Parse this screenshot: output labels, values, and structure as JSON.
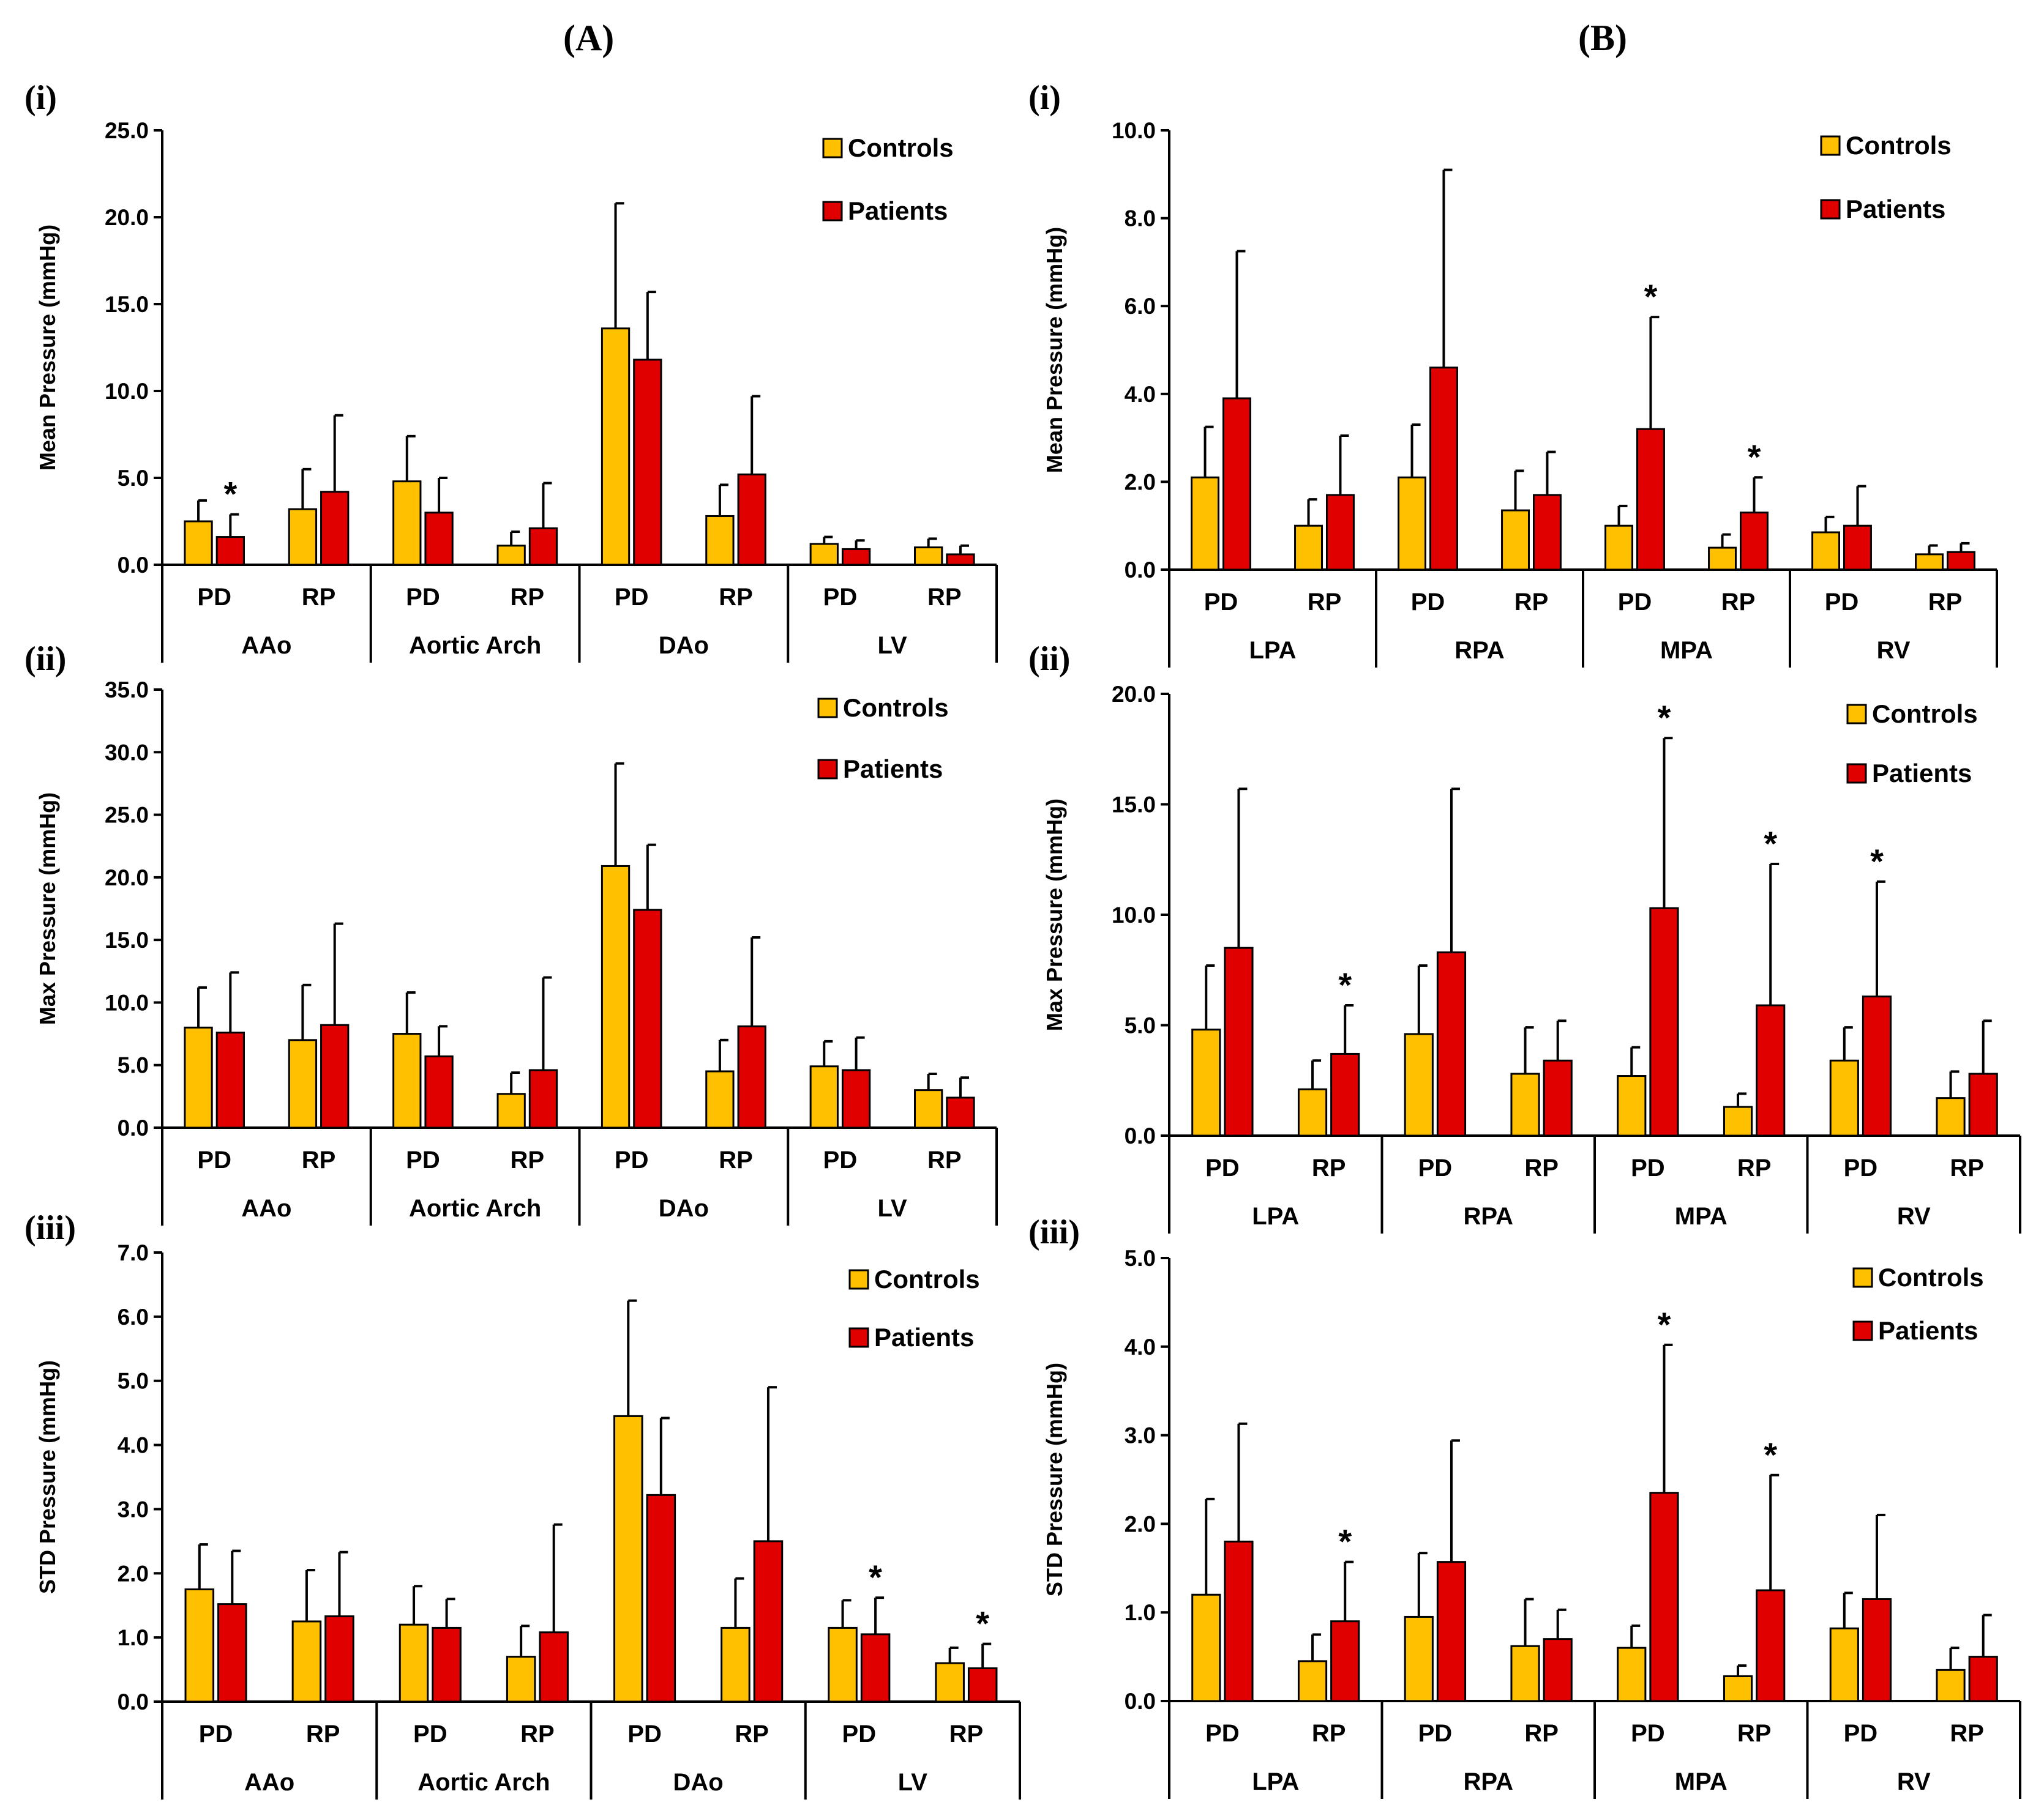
{
  "headers": {
    "A": "(A)",
    "B": "(B)"
  },
  "colors": {
    "controls": "#FFC000",
    "patients": "#E00000",
    "stroke": "#000000"
  },
  "legend": {
    "controls": "Controls",
    "patients": "Patients"
  },
  "chart_data": [
    {
      "id": "A-i",
      "panel": "(i)",
      "type": "bar",
      "ylabel": "Mean Pressure (mmHg)",
      "ylim": [
        0,
        25
      ],
      "yticks": [
        0,
        5,
        10,
        15,
        20,
        25
      ],
      "ytick_labels": [
        "0.0",
        "5.0",
        "10.0",
        "15.0",
        "20.0",
        "25.0"
      ],
      "groups": [
        "AAo",
        "Aortic Arch",
        "DAo",
        "LV"
      ],
      "subcategories": [
        "PD",
        "RP"
      ],
      "controls": {
        "values": [
          2.5,
          3.2,
          4.8,
          1.1,
          13.6,
          2.8,
          1.2,
          1.0
        ],
        "errors": [
          1.2,
          2.3,
          2.6,
          0.8,
          7.2,
          1.8,
          0.4,
          0.5
        ]
      },
      "patients": {
        "values": [
          1.6,
          4.2,
          3.0,
          2.1,
          11.8,
          5.2,
          0.9,
          0.6
        ],
        "errors": [
          1.3,
          4.4,
          2.0,
          2.6,
          3.9,
          4.5,
          0.5,
          0.5
        ]
      },
      "significance": [
        true,
        false,
        false,
        false,
        false,
        false,
        false,
        false
      ]
    },
    {
      "id": "A-ii",
      "panel": "(ii)",
      "type": "bar",
      "ylabel": "Max Pressure (mmHg)",
      "ylim": [
        0,
        35
      ],
      "yticks": [
        0,
        5,
        10,
        15,
        20,
        25,
        30,
        35
      ],
      "ytick_labels": [
        "0.0",
        "5.0",
        "10.0",
        "15.0",
        "20.0",
        "25.0",
        "30.0",
        "35.0"
      ],
      "groups": [
        "AAo",
        "Aortic Arch",
        "DAo",
        "LV"
      ],
      "subcategories": [
        "PD",
        "RP"
      ],
      "controls": {
        "values": [
          8.0,
          7.0,
          7.5,
          2.7,
          20.9,
          4.5,
          4.9,
          3.0
        ],
        "errors": [
          3.2,
          4.4,
          3.3,
          1.7,
          8.2,
          2.5,
          2.0,
          1.3
        ]
      },
      "patients": {
        "values": [
          7.6,
          8.2,
          5.7,
          4.6,
          17.4,
          8.1,
          4.6,
          2.4
        ],
        "errors": [
          4.8,
          8.1,
          2.4,
          7.4,
          5.2,
          7.1,
          2.6,
          1.6
        ]
      },
      "significance": [
        false,
        false,
        false,
        false,
        false,
        false,
        false,
        false
      ]
    },
    {
      "id": "A-iii",
      "panel": "(iii)",
      "type": "bar",
      "ylabel": "STD Pressure (mmHg)",
      "ylim": [
        0,
        7
      ],
      "yticks": [
        0,
        1,
        2,
        3,
        4,
        5,
        6,
        7
      ],
      "ytick_labels": [
        "0.0",
        "1.0",
        "2.0",
        "3.0",
        "4.0",
        "5.0",
        "6.0",
        "7.0"
      ],
      "groups": [
        "AAo",
        "Aortic Arch",
        "DAo",
        "LV"
      ],
      "subcategories": [
        "PD",
        "RP"
      ],
      "controls": {
        "values": [
          1.75,
          1.25,
          1.2,
          0.7,
          4.45,
          1.15,
          1.15,
          0.6
        ],
        "errors": [
          0.7,
          0.8,
          0.6,
          0.48,
          1.8,
          0.77,
          0.43,
          0.24
        ]
      },
      "patients": {
        "values": [
          1.52,
          1.33,
          1.15,
          1.08,
          3.22,
          2.5,
          1.05,
          0.52
        ],
        "errors": [
          0.83,
          1.0,
          0.45,
          1.68,
          1.2,
          2.4,
          0.57,
          0.38
        ]
      },
      "significance": [
        false,
        false,
        false,
        false,
        false,
        false,
        true,
        true
      ]
    },
    {
      "id": "B-i",
      "panel": "(i)",
      "type": "bar",
      "ylabel": "Mean Pressure (mmHg)",
      "ylim": [
        0,
        10
      ],
      "yticks": [
        0,
        2,
        4,
        6,
        8,
        10
      ],
      "ytick_labels": [
        "0.0",
        "2.0",
        "4.0",
        "6.0",
        "8.0",
        "10.0"
      ],
      "groups": [
        "LPA",
        "RPA",
        "MPA",
        "RV"
      ],
      "subcategories": [
        "PD",
        "RP"
      ],
      "controls": {
        "values": [
          2.1,
          1.0,
          2.1,
          1.35,
          1.0,
          0.5,
          0.85,
          0.35
        ],
        "errors": [
          1.15,
          0.6,
          1.2,
          0.9,
          0.45,
          0.3,
          0.35,
          0.2
        ]
      },
      "patients": {
        "values": [
          3.9,
          1.7,
          4.6,
          1.7,
          3.2,
          1.3,
          1.0,
          0.4
        ],
        "errors": [
          3.35,
          1.35,
          4.5,
          0.98,
          2.55,
          0.8,
          0.9,
          0.2
        ]
      },
      "significance": [
        false,
        false,
        false,
        false,
        true,
        true,
        false,
        false
      ]
    },
    {
      "id": "B-ii",
      "panel": "(ii)",
      "type": "bar",
      "ylabel": "Max Pressure (mmHg)",
      "ylim": [
        0,
        20
      ],
      "yticks": [
        0,
        5,
        10,
        15,
        20
      ],
      "ytick_labels": [
        "0.0",
        "5.0",
        "10.0",
        "15.0",
        "20.0"
      ],
      "groups": [
        "LPA",
        "RPA",
        "MPA",
        "RV"
      ],
      "subcategories": [
        "PD",
        "RP"
      ],
      "controls": {
        "values": [
          4.8,
          2.1,
          4.6,
          2.8,
          2.7,
          1.3,
          3.4,
          1.7
        ],
        "errors": [
          2.9,
          1.3,
          3.1,
          2.1,
          1.3,
          0.6,
          1.5,
          1.2
        ]
      },
      "patients": {
        "values": [
          8.5,
          3.7,
          8.3,
          3.4,
          10.3,
          5.9,
          6.3,
          2.8
        ],
        "errors": [
          7.2,
          2.2,
          7.4,
          1.8,
          7.7,
          6.4,
          5.2,
          2.4
        ]
      },
      "significance": [
        false,
        true,
        false,
        false,
        true,
        true,
        true,
        false
      ]
    },
    {
      "id": "B-iii",
      "panel": "(iii)",
      "type": "bar",
      "ylabel": "STD Pressure (mmHg)",
      "ylim": [
        0,
        5
      ],
      "yticks": [
        0,
        1,
        2,
        3,
        4,
        5
      ],
      "ytick_labels": [
        "0.0",
        "1.0",
        "2.0",
        "3.0",
        "4.0",
        "5.0"
      ],
      "groups": [
        "LPA",
        "RPA",
        "MPA",
        "RV"
      ],
      "subcategories": [
        "PD",
        "RP"
      ],
      "controls": {
        "values": [
          1.2,
          0.45,
          0.95,
          0.62,
          0.6,
          0.28,
          0.82,
          0.35
        ],
        "errors": [
          1.08,
          0.3,
          0.72,
          0.53,
          0.25,
          0.12,
          0.4,
          0.25
        ]
      },
      "patients": {
        "values": [
          1.8,
          0.9,
          1.57,
          0.7,
          2.35,
          1.25,
          1.15,
          0.5
        ],
        "errors": [
          1.33,
          0.67,
          1.37,
          0.33,
          1.67,
          1.3,
          0.95,
          0.47
        ]
      },
      "significance": [
        false,
        true,
        false,
        false,
        true,
        true,
        false,
        false
      ]
    }
  ]
}
